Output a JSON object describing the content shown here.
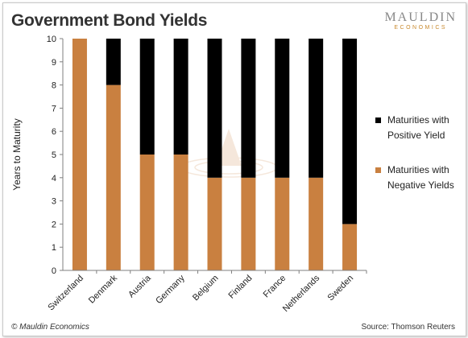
{
  "header": {
    "title": "Government Bond Yields",
    "logo_top": "MAULDIN",
    "logo_bottom": "ECONOMICS"
  },
  "footer": {
    "copyright": "© Mauldin Economics",
    "source": "Source: Thomson Reuters"
  },
  "colors": {
    "positive": "#000000",
    "negative": "#c98040"
  },
  "chart_data": {
    "type": "bar",
    "stacked": true,
    "ylabel": "Years to Maturity",
    "ylim": [
      0,
      10
    ],
    "yticks": [
      0,
      1,
      2,
      3,
      4,
      5,
      6,
      7,
      8,
      9,
      10
    ],
    "categories": [
      "Switzerland",
      "Denmark",
      "Austria",
      "Germany",
      "Belgium",
      "Finland",
      "France",
      "Netherlands",
      "Sweden"
    ],
    "series": [
      {
        "name": "Maturities with Negative Yields",
        "color": "#c98040",
        "values": [
          10,
          8,
          5,
          5,
          4,
          4,
          4,
          4,
          2
        ]
      },
      {
        "name": "Maturities with Positive Yield",
        "color": "#000000",
        "values": [
          0,
          2,
          5,
          5,
          6,
          6,
          6,
          6,
          8
        ]
      }
    ],
    "legend": [
      {
        "line1": "Maturities with",
        "line2": "Positive Yield",
        "color": "#000000"
      },
      {
        "line1": "Maturities with",
        "line2": "Negative Yields",
        "color": "#c98040"
      }
    ],
    "legend_position": "right",
    "grid": false
  }
}
